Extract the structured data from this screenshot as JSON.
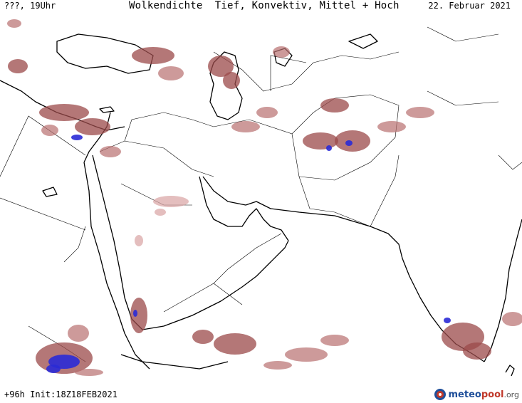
{
  "header": {
    "valid_time": "???, 19Uhr",
    "title": "Wolkendichte  Tief, Konvektiv, Mittel + Hoch",
    "date": "22. Februar 2021"
  },
  "footer": {
    "run_info": "+96h Init:18Z18FEB2021"
  },
  "logo": {
    "name_part1": "meteo",
    "name_part2": "pool",
    "suffix": ".org"
  },
  "colors": {
    "cloud_dense": "#9b4a4a",
    "cloud_medium": "#b86f6f",
    "cloud_light": "#d9a3a3",
    "convective": "#2a2ad6",
    "coastline": "#000000",
    "background": "#ffffff"
  }
}
